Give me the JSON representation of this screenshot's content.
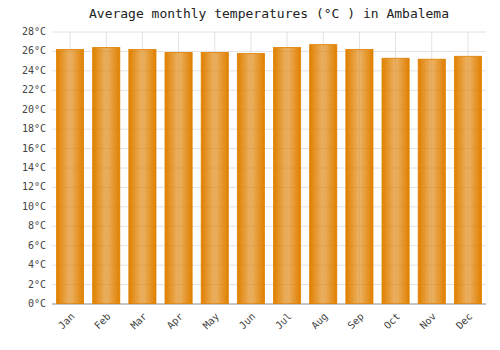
{
  "chart_data": {
    "type": "bar",
    "title": "Average monthly temperatures (°C ) in Ambalema",
    "categories": [
      "Jan",
      "Feb",
      "Mar",
      "Apr",
      "May",
      "Jun",
      "Jul",
      "Aug",
      "Sep",
      "Oct",
      "Nov",
      "Dec"
    ],
    "values": [
      26.2,
      26.4,
      26.2,
      25.9,
      25.9,
      25.8,
      26.4,
      26.7,
      26.2,
      25.3,
      25.2,
      25.5
    ],
    "color": "#E08000",
    "ylim": [
      0,
      28
    ],
    "yticks": [
      {
        "value": 0,
        "label": "0°C"
      },
      {
        "value": 2,
        "label": "2°C"
      },
      {
        "value": 4,
        "label": "4°C"
      },
      {
        "value": 6,
        "label": "6°C"
      },
      {
        "value": 8,
        "label": "8°C"
      },
      {
        "value": 10,
        "label": "10°C"
      },
      {
        "value": 12,
        "label": "12°C"
      },
      {
        "value": 14,
        "label": "14°C"
      },
      {
        "value": 16,
        "label": "16°C"
      },
      {
        "value": 18,
        "label": "18°C"
      },
      {
        "value": 20,
        "label": "20°C"
      },
      {
        "value": 22,
        "label": "22°C"
      },
      {
        "value": 24,
        "label": "24°C"
      },
      {
        "value": 26,
        "label": "26°C"
      },
      {
        "value": 28,
        "label": "28°C"
      }
    ],
    "grid": true
  }
}
